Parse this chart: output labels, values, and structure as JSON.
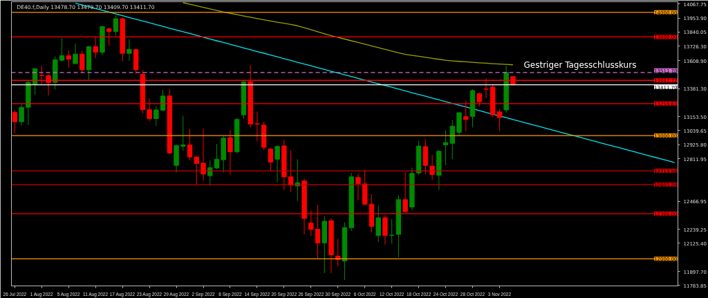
{
  "chart_data": {
    "type": "candlestick",
    "title": "DE40.f,Daily  13478.70 13479.70 13409.70 13411.70",
    "ylim": [
      11780,
      14086
    ],
    "categories": [
      "26 Jul 2022",
      null,
      null,
      null,
      "1 Aug 2022",
      null,
      null,
      null,
      "5 Aug 2022",
      null,
      null,
      null,
      "11 Aug 2022",
      null,
      null,
      null,
      "17 Aug 2022",
      null,
      null,
      null,
      "23 Aug 2022",
      null,
      null,
      null,
      "29 Aug 2022",
      null,
      null,
      null,
      "2 Sep 2022",
      null,
      null,
      null,
      "8 Sep 2022",
      null,
      null,
      null,
      "14 Sep 2022",
      null,
      null,
      null,
      "20 Sep 2022",
      null,
      null,
      null,
      "26 Sep 2022",
      null,
      null,
      null,
      "30 Sep 2022",
      null,
      null,
      null,
      "6 Oct 2022",
      null,
      null,
      null,
      "12 Oct 2022",
      null,
      null,
      null,
      "18 Oct 2022",
      null,
      null,
      null,
      "24 Oct 2022",
      null,
      null,
      null,
      "28 Oct 2022",
      null,
      null,
      null,
      "3 Nov 2022",
      null,
      null,
      null,
      null,
      null,
      null,
      null,
      null,
      null,
      null,
      null,
      null,
      null,
      null,
      null,
      null,
      null,
      null,
      null,
      null,
      null,
      null,
      null,
      null,
      null,
      null
    ],
    "yticks": [
      {
        "value": 14067.75,
        "label": "14067.75"
      },
      {
        "value": 13953.9,
        "label": "13953.90"
      },
      {
        "value": 13840.05,
        "label": "13840.05"
      },
      {
        "value": 13726.3,
        "label": "13726.30"
      },
      {
        "value": 13608.9,
        "label": "13608.90"
      },
      {
        "value": 13381.3,
        "label": "13381.30"
      },
      {
        "value": 13153.5,
        "label": "13153.50"
      },
      {
        "value": 13039.65,
        "label": "13039.65"
      },
      {
        "value": 12925.8,
        "label": "12925.80"
      },
      {
        "value": 12811.95,
        "label": "12811.95"
      },
      {
        "value": 12466.95,
        "label": "12466.95"
      },
      {
        "value": 12239.25,
        "label": "12239.25"
      },
      {
        "value": 12125.4,
        "label": "12125.40"
      },
      {
        "value": 11897.7,
        "label": "11897.70"
      },
      {
        "value": 11783.85,
        "label": "11783.85"
      }
    ],
    "grid": false,
    "ohlc": [
      [
        13187,
        13205,
        13020,
        13112
      ],
      [
        13112,
        13255,
        13081,
        13229
      ],
      [
        13229,
        13445,
        13085,
        13432
      ],
      [
        13417,
        13547,
        13330,
        13543
      ],
      [
        13488,
        13569,
        13417,
        13486
      ],
      [
        13486,
        13500,
        13325,
        13430
      ],
      [
        13432,
        13643,
        13375,
        13615
      ],
      [
        13611,
        13792,
        13602,
        13648
      ],
      [
        13648,
        13691,
        13552,
        13620
      ],
      [
        13584,
        13746,
        13580,
        13661
      ],
      [
        13661,
        13689,
        13510,
        13534
      ],
      [
        13534,
        13728,
        13454,
        13722
      ],
      [
        13722,
        13796,
        13626,
        13676
      ],
      [
        13676,
        13885,
        13652,
        13885
      ],
      [
        13866,
        13874,
        13728,
        13844
      ],
      [
        13844,
        13971,
        13811,
        13948
      ],
      [
        13948,
        13959,
        13602,
        13667
      ],
      [
        13667,
        13781,
        13606,
        13700
      ],
      [
        13698,
        13698,
        13504,
        13534
      ],
      [
        13498,
        13532,
        13180,
        13210
      ],
      [
        13210,
        13297,
        13116,
        13138
      ],
      [
        13138,
        13238,
        13079,
        13208
      ],
      [
        13205,
        13371,
        13200,
        13321
      ],
      [
        13321,
        13375,
        12850,
        12859
      ],
      [
        12758,
        12930,
        12702,
        12918
      ],
      [
        12914,
        13159,
        12878,
        12924
      ],
      [
        12924,
        13053,
        12798,
        12826
      ],
      [
        12826,
        12830,
        12604,
        12774
      ],
      [
        12776,
        13057,
        12632,
        12687
      ],
      [
        12674,
        12798,
        12595,
        12739
      ],
      [
        12737,
        12931,
        12728,
        12808
      ],
      [
        12804,
        12998,
        12702,
        12979
      ],
      [
        12983,
        13044,
        12684,
        12868
      ],
      [
        12868,
        13140,
        12854,
        13131
      ],
      [
        13168,
        13450,
        13136,
        13436
      ],
      [
        13436,
        13569,
        13066,
        13094
      ],
      [
        13096,
        13195,
        12952,
        13094
      ],
      [
        13085,
        13112,
        12885,
        12905
      ],
      [
        12890,
        12900,
        12715,
        12785
      ],
      [
        12808,
        12920,
        12623,
        12912
      ],
      [
        12916,
        12965,
        12558,
        12665
      ],
      [
        12665,
        12881,
        12540,
        12599
      ],
      [
        12591,
        12808,
        12469,
        12617
      ],
      [
        12632,
        12650,
        12198,
        12327
      ],
      [
        12290,
        12392,
        12185,
        12238
      ],
      [
        12240,
        12438,
        12004,
        12128
      ],
      [
        12129,
        12346,
        11884,
        12305
      ],
      [
        12309,
        12327,
        11884,
        12032
      ],
      [
        12022,
        12161,
        11939,
        11995
      ],
      [
        11982,
        12296,
        11828,
        12253
      ],
      [
        12253,
        12697,
        12226,
        12665
      ],
      [
        12660,
        12686,
        12475,
        12610
      ],
      [
        12608,
        12724,
        12432,
        12444
      ],
      [
        12444,
        12521,
        12216,
        12263
      ],
      [
        12189,
        12432,
        12137,
        12333
      ],
      [
        12333,
        12351,
        12115,
        12189
      ],
      [
        12190,
        12322,
        12122,
        12192
      ],
      [
        12198,
        12516,
        12013,
        12480
      ],
      [
        12480,
        12700,
        12377,
        12383
      ],
      [
        12420,
        12739,
        12392,
        12693
      ],
      [
        12697,
        12956,
        12678,
        12915
      ],
      [
        12910,
        12968,
        12687,
        12758
      ],
      [
        12752,
        12844,
        12641,
        12684
      ],
      [
        12678,
        12880,
        12558,
        12872
      ],
      [
        12924,
        13042,
        12761,
        12943
      ],
      [
        12937,
        13127,
        12808,
        13075
      ],
      [
        13025,
        13186,
        13001,
        13186
      ],
      [
        13153,
        13284,
        13035,
        13131
      ],
      [
        13155,
        13376,
        13066,
        13365
      ],
      [
        13340,
        13349,
        13236,
        13275
      ],
      [
        13377,
        13463,
        13303,
        13376
      ],
      [
        13393,
        13417,
        13149,
        13168
      ],
      [
        13192,
        13214,
        13035,
        13146
      ],
      [
        13208,
        13565,
        13186,
        13511.7
      ],
      [
        13478.7,
        13479.7,
        13409.7,
        13411.7
      ],
      null,
      null,
      null,
      null,
      null,
      null,
      null,
      null,
      null,
      null,
      null,
      null,
      null,
      null,
      null,
      null,
      null,
      null,
      null,
      null,
      null,
      null,
      null,
      null
    ],
    "colors": [
      "#ff0000",
      "#008a00",
      "#008a00",
      "#008a00",
      "#ff0000",
      "#ff0000",
      "#008a00",
      "#008a00",
      "#ff0000",
      "#008a00",
      "#ff0000",
      "#008a00",
      "#ff0000",
      "#008a00",
      "#ff0000",
      "#008a00",
      "#ff0000",
      "#008a00",
      "#ff0000",
      "#ff0000",
      "#ff0000",
      "#008a00",
      "#008a00",
      "#ff0000",
      "#008a00",
      "#008a00",
      "#ff0000",
      "#ff0000",
      "#ff0000",
      "#008a00",
      "#008a00",
      "#008a00",
      "#ff0000",
      "#008a00",
      "#008a00",
      "#ff0000",
      "#ff0000",
      "#ff0000",
      "#ff0000",
      "#008a00",
      "#ff0000",
      "#ff0000",
      "#008a00",
      "#ff0000",
      "#ff0000",
      "#ff0000",
      "#008a00",
      "#ff0000",
      "#ff0000",
      "#008a00",
      "#008a00",
      "#ff0000",
      "#ff0000",
      "#ff0000",
      "#008a00",
      "#ff0000",
      "#008a00",
      "#008a00",
      "#ff0000",
      "#008a00",
      "#008a00",
      "#ff0000",
      "#ff0000",
      "#008a00",
      "#008a00",
      "#008a00",
      "#008a00",
      "#ff0000",
      "#008a00",
      "#ff0000",
      "#ff0000",
      "#ff0000",
      "#ff0000",
      "#008a00",
      "#ff0000",
      null,
      null,
      null,
      null,
      null,
      null,
      null,
      null,
      null,
      null,
      null,
      null,
      null,
      null,
      null,
      null,
      null,
      null,
      null,
      null,
      null,
      null,
      null,
      null
    ],
    "series": [
      {
        "type": "line",
        "color": "#00e5f0",
        "values": [
          null,
          null,
          null,
          null,
          null,
          null,
          null,
          null,
          null,
          14074,
          14060,
          14045,
          14031,
          14016,
          14002,
          13987,
          13973,
          13958,
          13944,
          13929,
          13915,
          13900,
          13886,
          13871,
          13857,
          13842,
          13828,
          13813,
          13798,
          13784,
          13769,
          13755,
          13740,
          13726,
          13711,
          13697,
          13682,
          13668,
          13653,
          13639,
          13624,
          13610,
          13595,
          13581,
          13566,
          13551,
          13537,
          13522,
          13508,
          13493,
          13479,
          13464,
          13450,
          13435,
          13421,
          13406,
          13392,
          13377,
          13363,
          13348,
          13333,
          13319,
          13304,
          13290,
          13275,
          13261,
          13246,
          13232,
          13217,
          13203,
          13188,
          13174,
          13159,
          13145,
          13130,
          13116,
          13101,
          13086,
          13072,
          13057,
          13043,
          13028,
          13014,
          12999,
          12985,
          12970,
          12956,
          12941,
          12927,
          12912,
          12898,
          12883,
          12869,
          12854,
          12839,
          12825,
          12810,
          12796,
          12781
        ]
      },
      {
        "type": "line",
        "color": "#a0a000",
        "values": [
          null,
          null,
          null,
          null,
          null,
          null,
          null,
          null,
          null,
          null,
          null,
          null,
          null,
          null,
          null,
          null,
          null,
          null,
          null,
          null,
          null,
          null,
          null,
          null,
          null,
          14079,
          14066,
          14053,
          14040,
          14028,
          14015,
          14003,
          13992,
          13981,
          13970,
          13960,
          13949,
          13939,
          13930,
          13920,
          13911,
          13901,
          13891,
          13875,
          13859,
          13843,
          13826,
          13810,
          13797,
          13783,
          13769,
          13755,
          13741,
          13727,
          13714,
          13700,
          13686,
          13672,
          13659,
          13651,
          13643,
          13635,
          13627,
          13619,
          13611,
          13606,
          13602,
          13598,
          13594,
          13590,
          13587,
          13583,
          13580,
          13577,
          13574,
          null,
          null,
          null,
          null,
          null,
          null,
          null,
          null,
          null,
          null,
          null,
          null,
          null,
          null,
          null,
          null,
          null,
          null,
          null,
          null,
          null,
          null,
          null,
          null
        ]
      }
    ],
    "ref_lines": [
      {
        "axis": "y",
        "value": 14000,
        "label": "14000.00",
        "color": "#ff9900"
      },
      {
        "axis": "y",
        "value": 13800,
        "label": "13800.00",
        "color": "#ff0000"
      },
      {
        "axis": "y",
        "value": 13511.7,
        "label": "13511.70",
        "color": "#d070d0",
        "line_style": "dashed"
      },
      {
        "axis": "y",
        "value": 13447.72,
        "label": "13447.72",
        "color": "#ff0000"
      },
      {
        "axis": "y",
        "value": 13411.7,
        "label": "13411.70",
        "color": "#ffffff"
      },
      {
        "axis": "y",
        "value": 13259.63,
        "label": "13259.63",
        "color": "#ff0000"
      },
      {
        "axis": "y",
        "value": 13000,
        "label": "13000.00",
        "color": "#ff9900"
      },
      {
        "axis": "y",
        "value": 12713.56,
        "label": "12713.56",
        "color": "#cc0000"
      },
      {
        "axis": "y",
        "value": 12601.29,
        "label": "12601.29",
        "color": "#cc0000"
      },
      {
        "axis": "y",
        "value": 12366,
        "label": "12366.00",
        "color": "#ff0000"
      },
      {
        "axis": "y",
        "value": 12000,
        "label": "12000.00",
        "color": "#ff9900"
      }
    ],
    "annotations": [
      {
        "text": "Gestriger Tagesschlusskurs",
        "y": 13511.7
      }
    ]
  }
}
